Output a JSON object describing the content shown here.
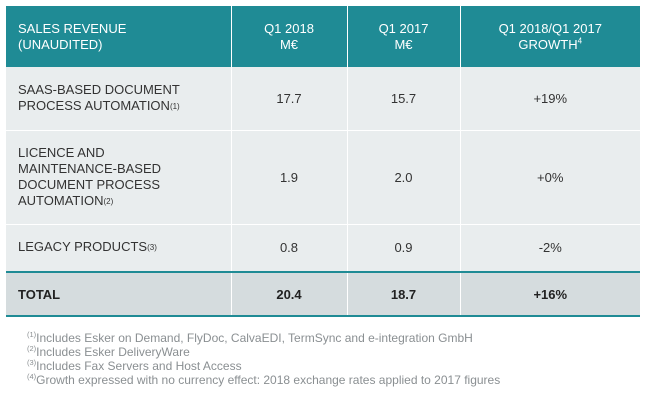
{
  "header": {
    "col1": "SALES REVENUE",
    "col1_sub": "(UNAUDITED)",
    "col2": "Q1 2018",
    "col2_unit": "M€",
    "col3": "Q1 2017",
    "col3_unit": "M€",
    "col4": "Q1 2018/Q1 2017",
    "col4_sub": "GROWTH",
    "col4_mark": "4"
  },
  "rows": [
    {
      "label_lines": [
        "SAAS-BASED DOCUMENT",
        "PROCESS AUTOMATION"
      ],
      "mark": "(1)",
      "q1_2018": "17.7",
      "q1_2017": "15.7",
      "growth": "+19%"
    },
    {
      "label_lines": [
        "LICENCE AND",
        "MAINTENANCE-BASED",
        "DOCUMENT PROCESS",
        "AUTOMATION"
      ],
      "mark": "(2)",
      "q1_2018": "1.9",
      "q1_2017": "2.0",
      "growth": "+0%"
    },
    {
      "label_lines": [
        "LEGACY PRODUCTS"
      ],
      "mark": "(3)",
      "q1_2018": "0.8",
      "q1_2017": "0.9",
      "growth": "-2%"
    }
  ],
  "total": {
    "label": "TOTAL",
    "q1_2018": "20.4",
    "q1_2017": "18.7",
    "growth": "+16%"
  },
  "notes": [
    {
      "mark": "(1)",
      "text": "Includes Esker on Demand, FlyDoc, CalvaEDI, TermSync and e-integration GmbH"
    },
    {
      "mark": "(2)",
      "text": "Includes Esker DeliveryWare"
    },
    {
      "mark": "(3)",
      "text": "Includes Fax Servers and Host Access"
    },
    {
      "mark": "(4)",
      "text": "Growth expressed with no currency effect: 2018 exchange rates applied to 2017 figures"
    }
  ],
  "colors": {
    "header_bg": "#1f8b95",
    "row_bg": "#e9edee",
    "total_bg": "#d5dcde",
    "note_text": "#8a8f92"
  }
}
